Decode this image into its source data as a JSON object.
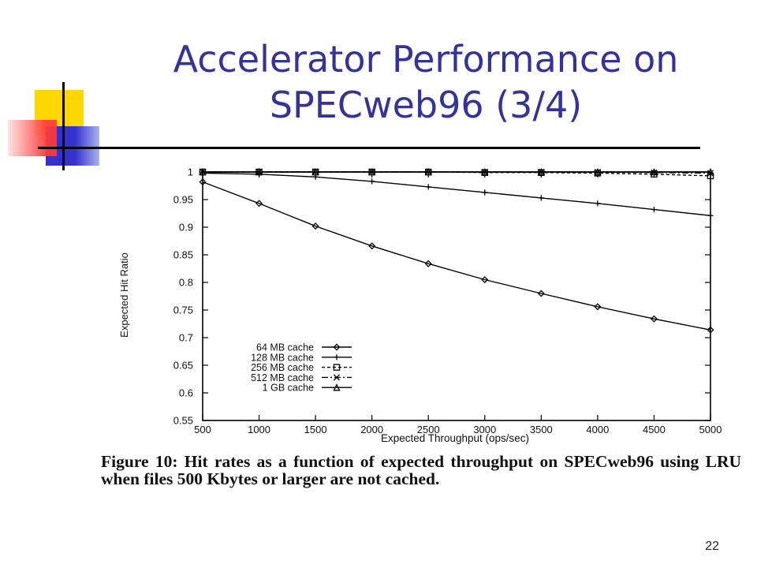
{
  "slide": {
    "title_line1": "Accelerator Performance on",
    "title_line2": "SPECweb96 (3/4)",
    "caption": "Figure 10: Hit rates as a function of expected throughput on SPECweb96 using LRU when files 500 Kbytes or larger are not cached.",
    "slide_number": "22"
  },
  "colors": {
    "title": "#333399",
    "deco_yellow": "#ffd700",
    "deco_red": "#ff3b3b",
    "deco_blue": "#3333cc",
    "plot_line": "#000000"
  },
  "chart_data": {
    "type": "line",
    "title": "",
    "xlabel": "Expected Throughput (ops/sec)",
    "ylabel": "Expected Hit Ratio",
    "xlim": [
      500,
      5000
    ],
    "ylim": [
      0.55,
      1
    ],
    "x_ticks": [
      500,
      1000,
      1500,
      2000,
      2500,
      3000,
      3500,
      4000,
      4500,
      5000
    ],
    "y_ticks": [
      0.55,
      0.6,
      0.65,
      0.7,
      0.75,
      0.8,
      0.85,
      0.9,
      0.95,
      1
    ],
    "y_tick_labels": [
      "0.55",
      "0.6",
      "0.65",
      "0.7",
      "0.75",
      "0.8",
      "0.85",
      "0.9",
      "0.95",
      "1"
    ],
    "grid": false,
    "legend_position": "bottom-left",
    "x": [
      500,
      1000,
      1500,
      2000,
      2500,
      3000,
      3500,
      4000,
      4500,
      5000
    ],
    "series": [
      {
        "name": "64 MB cache",
        "marker": "diamond",
        "dash": "",
        "values": [
          0.982,
          0.943,
          0.902,
          0.866,
          0.834,
          0.805,
          0.78,
          0.756,
          0.734,
          0.714
        ]
      },
      {
        "name": "128 MB cache",
        "marker": "plus",
        "dash": "",
        "values": [
          0.998,
          0.996,
          0.991,
          0.983,
          0.973,
          0.963,
          0.953,
          0.943,
          0.932,
          0.921
        ]
      },
      {
        "name": "256 MB cache",
        "marker": "square",
        "dash": "4,3",
        "values": [
          1.0,
          1.0,
          1.0,
          1.0,
          1.0,
          0.999,
          0.999,
          0.998,
          0.996,
          0.993
        ]
      },
      {
        "name": "512 MB cache",
        "marker": "x",
        "dash": "8,3,2,3",
        "values": [
          1.0,
          1.0,
          1.0,
          1.0,
          1.0,
          1.0,
          1.0,
          1.0,
          0.999,
          0.998
        ]
      },
      {
        "name": "1 GB cache",
        "marker": "triangle",
        "dash": "",
        "values": [
          1.0,
          1.0,
          1.0,
          1.0,
          1.0,
          1.0,
          1.0,
          1.0,
          1.0,
          1.0
        ]
      }
    ]
  }
}
